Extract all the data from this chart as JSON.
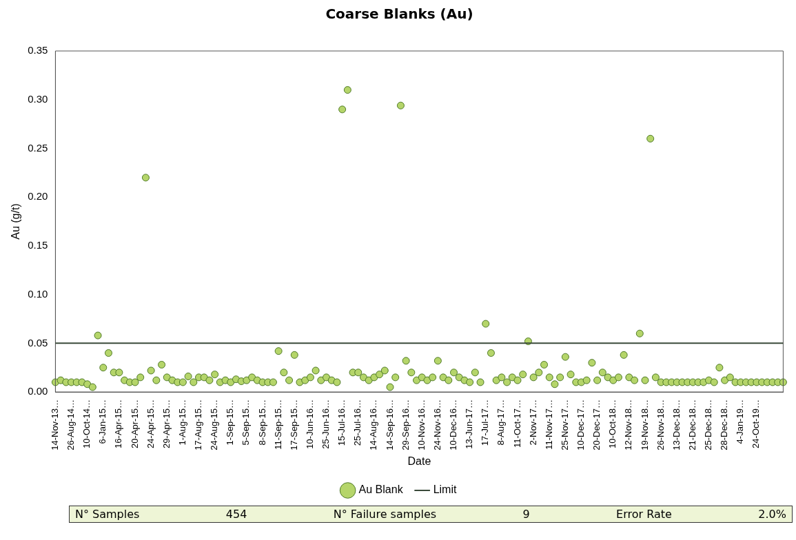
{
  "chart_data": {
    "type": "scatter",
    "title": "Coarse Blanks (Au)",
    "xlabel": "Date",
    "ylabel": "Au (g/t)",
    "categories": [
      "14-Nov-13…",
      null,
      null,
      "26-Aug-14…",
      null,
      null,
      "10-Oct-14…",
      null,
      null,
      "6-Jan-15…",
      null,
      null,
      "16-Apr-15…",
      null,
      null,
      "20-Apr-15…",
      null,
      null,
      "24-Apr-15…",
      null,
      null,
      "29-Apr-15…",
      null,
      null,
      "1-Aug-15…",
      null,
      null,
      "17-Aug-15…",
      null,
      null,
      "24-Aug-15…",
      null,
      null,
      "1-Sep-15…",
      null,
      null,
      "5-Sep-15…",
      null,
      null,
      "8-Sep-15…",
      null,
      null,
      "11-Sep-15…",
      null,
      null,
      "17-Sep-15…",
      null,
      null,
      "10-Jun-16…",
      null,
      null,
      "25-Jun-16…",
      null,
      null,
      "15-Jul-16…",
      null,
      null,
      "25-Jul-16…",
      null,
      null,
      "14-Aug-16…",
      null,
      null,
      "14-Sep-16…",
      null,
      null,
      "29-Sep-16…",
      null,
      null,
      "10-Nov-16…",
      null,
      null,
      "24-Nov-16…",
      null,
      null,
      "10-Dec-16…",
      null,
      null,
      "13-Jun-17…",
      null,
      null,
      "17-Jul-17…",
      null,
      null,
      "8-Aug-17…",
      null,
      null,
      "11-Oct-17…",
      null,
      null,
      "2-Nov-17…",
      null,
      null,
      "11-Nov-17…",
      null,
      null,
      "25-Nov-17…",
      null,
      null,
      "10-Dec-17…",
      null,
      null,
      "20-Dec-17…",
      null,
      null,
      "10-Oct-18…",
      null,
      null,
      "12-Nov-18…",
      null,
      null,
      "19-Nov-18…",
      null,
      null,
      "26-Nov-18…",
      null,
      null,
      "13-Dec-18…",
      null,
      null,
      "21-Dec-18…",
      null,
      null,
      "25-Dec-18…",
      null,
      null,
      "28-Dec-18…",
      null,
      null,
      "4-Jan-19…",
      null,
      null,
      "24-Oct-19…",
      null,
      null,
      null,
      null,
      null
    ],
    "series": [
      {
        "name": "Au Blank",
        "color": "#b5d56a",
        "values": [
          0.01,
          0.012,
          0.01,
          0.01,
          0.01,
          0.01,
          0.008,
          0.005,
          0.058,
          0.025,
          0.04,
          0.02,
          0.02,
          0.012,
          0.01,
          0.01,
          0.015,
          0.22,
          0.022,
          0.012,
          0.028,
          0.015,
          0.012,
          0.01,
          0.01,
          0.016,
          0.01,
          0.015,
          0.015,
          0.012,
          0.018,
          0.01,
          0.012,
          0.01,
          0.013,
          0.011,
          0.012,
          0.015,
          0.012,
          0.01,
          0.01,
          0.01,
          0.042,
          0.02,
          0.012,
          0.038,
          0.01,
          0.012,
          0.015,
          0.022,
          0.012,
          0.015,
          0.012,
          0.01,
          0.29,
          0.31,
          0.02,
          0.02,
          0.015,
          0.012,
          0.015,
          0.018,
          0.022,
          0.005,
          0.015,
          0.294,
          0.032,
          0.02,
          0.012,
          0.015,
          0.012,
          0.015,
          0.032,
          0.015,
          0.012,
          0.02,
          0.015,
          0.012,
          0.01,
          0.02,
          0.01,
          0.07,
          0.04,
          0.012,
          0.015,
          0.01,
          0.015,
          0.012,
          0.018,
          0.052,
          0.015,
          0.02,
          0.028,
          0.015,
          0.008,
          0.015,
          0.036,
          0.018,
          0.01,
          0.01,
          0.012,
          0.03,
          0.012,
          0.02,
          0.015,
          0.012,
          0.015,
          0.038,
          0.015,
          0.012,
          0.06,
          0.012,
          0.26,
          0.015,
          0.01,
          0.01,
          0.01,
          0.01,
          0.01,
          0.01,
          0.01,
          0.01,
          0.01,
          0.012,
          0.01,
          0.025,
          0.012,
          0.015,
          0.01,
          0.01,
          0.01,
          0.01,
          0.01,
          0.01,
          0.01,
          0.01,
          0.01,
          0.01
        ]
      }
    ],
    "ref_lines": [
      {
        "axis": "y",
        "value": 0.05,
        "label": "Limit",
        "color": "#3a4a3a"
      }
    ],
    "ylim": [
      0,
      0.35
    ],
    "yticks": [
      {
        "value": 0,
        "label": "0.00"
      },
      {
        "value": 0.05,
        "label": "0.05"
      },
      {
        "value": 0.1,
        "label": "0.10"
      },
      {
        "value": 0.15,
        "label": "0.15"
      },
      {
        "value": 0.2,
        "label": "0.20"
      },
      {
        "value": 0.25,
        "label": "0.25"
      },
      {
        "value": 0.3,
        "label": "0.30"
      },
      {
        "value": 0.35,
        "label": "0.35"
      }
    ],
    "marker": "circle",
    "legend": "bottom",
    "annotations": [
      "N° Samples",
      "454",
      "N° Failure samples",
      "9",
      "Error Rate",
      "2.0%"
    ]
  }
}
